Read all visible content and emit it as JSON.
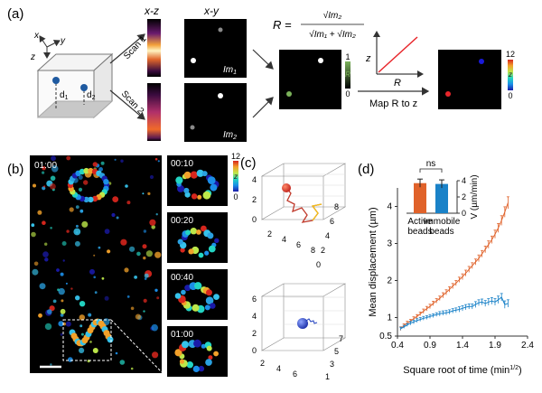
{
  "panel_a": {
    "label": "(a)",
    "axes": {
      "x": "x",
      "y": "y",
      "z": "z"
    },
    "depths": {
      "d1": "d",
      "d1_sub": "1",
      "d2": "d",
      "d2_sub": "2"
    },
    "scan1": "Scan 1",
    "scan2": "Scan 2",
    "xz_title": "x-z",
    "xy_title": "x-y",
    "im1": {
      "main": "Im",
      "sub": "1"
    },
    "im2": {
      "main": "Im",
      "sub": "2"
    },
    "ratio": {
      "lhs": "R =",
      "num": "√Im₂",
      "den": "√Im₁ + √Im₂"
    },
    "r_bar": {
      "top": "1",
      "mid": "R",
      "bottom": "0",
      "color_top": "#7bb25a",
      "color_bottom": "#000000"
    },
    "map_plot": {
      "z": "z",
      "r": "R",
      "line_color": "#e8262b"
    },
    "map_label": "Map R to z",
    "z_bar": {
      "top": "12",
      "mid": "z",
      "bottom": "0"
    }
  },
  "panel_b": {
    "label": "(b)",
    "main_time": "01:00",
    "insets": [
      "00:10",
      "00:20",
      "00:40",
      "01:00"
    ],
    "z_bar": {
      "top": "12",
      "mid": "z",
      "bottom": "0"
    }
  },
  "panel_c": {
    "label": "(c)",
    "plot1": {
      "z_ticks": [
        "0",
        "2",
        "4"
      ],
      "y_ticks": [
        "0",
        "2",
        "4",
        "6",
        "8"
      ],
      "x_ticks": [
        "2",
        "4",
        "6",
        "8"
      ],
      "path_color": "#c0392b"
    },
    "plot2": {
      "z_ticks": [
        "0",
        "2",
        "4",
        "6"
      ],
      "y_ticks": [
        "2",
        "4",
        "6"
      ],
      "x_ticks": [
        "1",
        "3",
        "5",
        "7"
      ],
      "bead_color": "#1f3fbf"
    }
  },
  "panel_d": {
    "label": "(d)",
    "inset": {
      "ylabel": "V (µm/min)",
      "yticks": [
        "0",
        "2",
        "4"
      ],
      "sig": "ns",
      "categories": [
        "Active\nbeads",
        "Immobile\nbeads"
      ],
      "values": [
        3.7,
        3.6
      ],
      "errors": [
        0.5,
        0.5
      ],
      "colors": [
        "#e0622a",
        "#1a82c8"
      ],
      "ylim": [
        0,
        4
      ]
    }
  },
  "chart_data": {
    "type": "line",
    "title": "",
    "xlabel": "Square root of time (min1/2)",
    "ylabel": "Mean displacement (µm)",
    "xlim": [
      0.4,
      2.4
    ],
    "ylim": [
      0.5,
      4.5
    ],
    "xticks": [
      "0.4",
      "0.9",
      "1.4",
      "1.9",
      "2.4"
    ],
    "yticks": [
      "0.5",
      "1",
      "2",
      "3",
      "4"
    ],
    "series": [
      {
        "name": "Active beads",
        "color": "#e0622a",
        "x": [
          0.45,
          0.5,
          0.55,
          0.6,
          0.65,
          0.7,
          0.75,
          0.8,
          0.85,
          0.9,
          0.95,
          1.0,
          1.05,
          1.1,
          1.15,
          1.2,
          1.25,
          1.3,
          1.35,
          1.4,
          1.45,
          1.5,
          1.55,
          1.6,
          1.65,
          1.7,
          1.75,
          1.8,
          1.85,
          1.9,
          1.95,
          2.0,
          2.05,
          2.1
        ],
        "y": [
          0.7,
          0.78,
          0.85,
          0.9,
          0.97,
          1.03,
          1.1,
          1.17,
          1.24,
          1.3,
          1.38,
          1.45,
          1.52,
          1.6,
          1.68,
          1.76,
          1.85,
          1.93,
          2.02,
          2.1,
          2.2,
          2.3,
          2.4,
          2.5,
          2.6,
          2.72,
          2.84,
          2.97,
          3.1,
          3.25,
          3.42,
          3.62,
          3.85,
          4.1
        ],
        "err": [
          0.05,
          0.05,
          0.05,
          0.05,
          0.05,
          0.05,
          0.05,
          0.06,
          0.06,
          0.06,
          0.06,
          0.06,
          0.06,
          0.07,
          0.07,
          0.07,
          0.07,
          0.07,
          0.07,
          0.08,
          0.08,
          0.08,
          0.08,
          0.08,
          0.09,
          0.09,
          0.09,
          0.1,
          0.1,
          0.11,
          0.12,
          0.13,
          0.14,
          0.16
        ]
      },
      {
        "name": "Immobile beads",
        "color": "#1a82c8",
        "x": [
          0.45,
          0.5,
          0.55,
          0.6,
          0.65,
          0.7,
          0.75,
          0.8,
          0.85,
          0.9,
          0.95,
          1.0,
          1.05,
          1.1,
          1.15,
          1.2,
          1.25,
          1.3,
          1.35,
          1.4,
          1.45,
          1.5,
          1.55,
          1.6,
          1.65,
          1.7,
          1.75,
          1.8,
          1.85,
          1.9,
          1.95,
          2.0,
          2.05,
          2.1
        ],
        "y": [
          0.7,
          0.75,
          0.8,
          0.85,
          0.88,
          0.92,
          0.95,
          0.98,
          1.0,
          1.03,
          1.05,
          1.08,
          1.1,
          1.12,
          1.13,
          1.15,
          1.18,
          1.2,
          1.22,
          1.25,
          1.28,
          1.3,
          1.3,
          1.35,
          1.4,
          1.42,
          1.38,
          1.42,
          1.45,
          1.42,
          1.48,
          1.55,
          1.35,
          1.38
        ],
        "err": [
          0.04,
          0.04,
          0.04,
          0.05,
          0.05,
          0.05,
          0.05,
          0.05,
          0.05,
          0.05,
          0.05,
          0.05,
          0.06,
          0.06,
          0.06,
          0.06,
          0.06,
          0.06,
          0.07,
          0.07,
          0.07,
          0.07,
          0.07,
          0.08,
          0.08,
          0.08,
          0.08,
          0.09,
          0.09,
          0.09,
          0.1,
          0.1,
          0.1,
          0.1
        ]
      }
    ]
  }
}
